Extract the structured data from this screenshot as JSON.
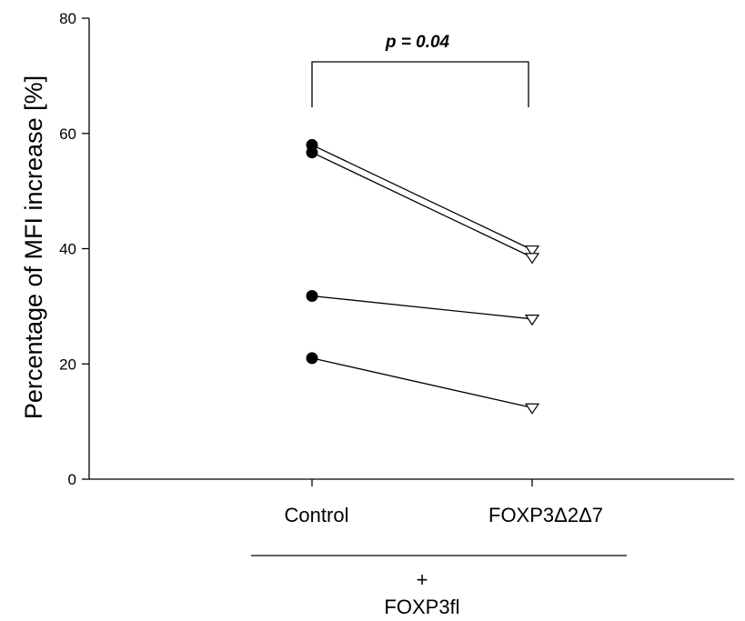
{
  "chart_data": {
    "type": "line",
    "categories": [
      "Control",
      "FOXP3Δ2Δ7"
    ],
    "ylabel": "Percentage of MFI increase [%]",
    "ylim": [
      0,
      80
    ],
    "yticks": [
      0,
      20,
      40,
      60,
      80
    ],
    "grid": false,
    "series": [
      {
        "values": [
          58,
          39.8
        ],
        "markers": [
          "filled-circle",
          "open-triangle-down"
        ]
      },
      {
        "values": [
          56.7,
          38.5
        ],
        "markers": [
          "filled-circle",
          "open-triangle-down"
        ]
      },
      {
        "values": [
          31.8,
          27.8
        ],
        "markers": [
          "filled-circle",
          "open-triangle-down"
        ]
      },
      {
        "values": [
          21,
          12.4
        ],
        "markers": [
          "filled-circle",
          "open-triangle-down"
        ]
      }
    ],
    "annotation": {
      "text": "p = 0.04",
      "between": [
        "Control",
        "FOXP3Δ2Δ7"
      ]
    },
    "group_label": {
      "plus": "+",
      "text": "FOXP3fl"
    }
  }
}
